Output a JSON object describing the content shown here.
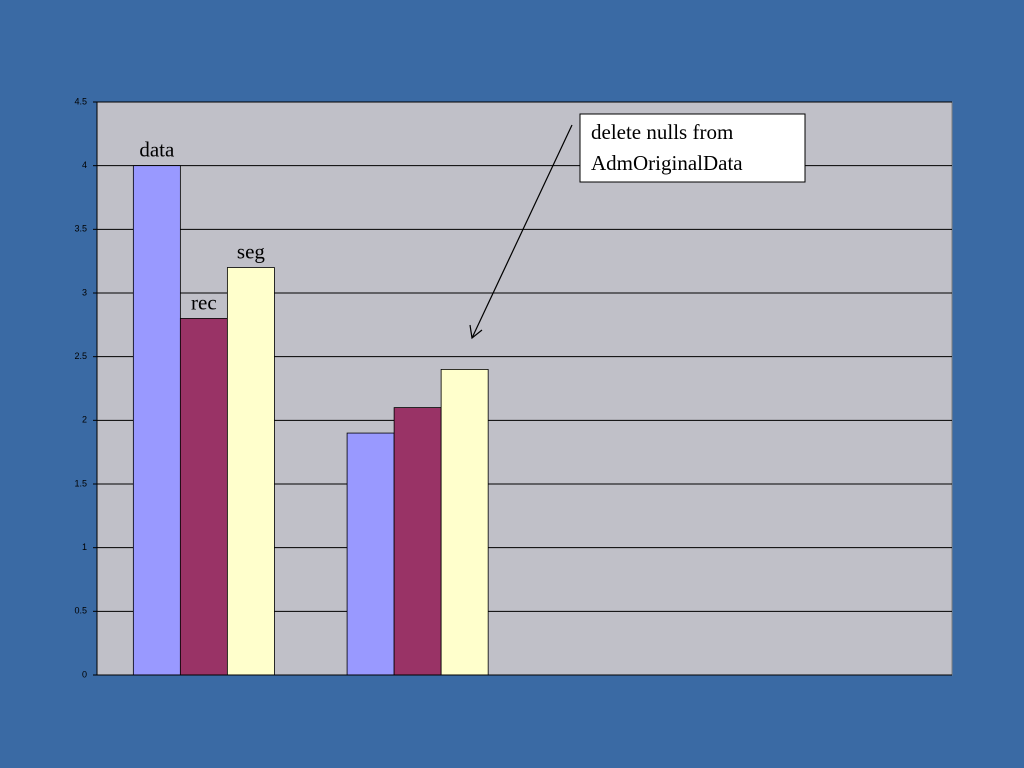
{
  "chart_data": {
    "type": "bar",
    "categories": [
      null,
      null,
      null,
      null
    ],
    "series": [
      {
        "name": "data",
        "color": "#9999ff",
        "values": [
          4,
          1.9,
          null,
          null
        ]
      },
      {
        "name": "rec",
        "color": "#993366",
        "values": [
          2.8,
          2.1,
          null,
          null
        ]
      },
      {
        "name": "seg",
        "color": "#ffffcc",
        "values": [
          3.2,
          2.4,
          null,
          null
        ]
      }
    ],
    "ylim": [
      0,
      4.5
    ],
    "yticks": [
      0,
      0.5,
      1,
      1.5,
      2,
      2.5,
      3,
      3.5,
      4,
      4.5
    ],
    "grid": true,
    "annotation": [
      "delete nulls from",
      "AdmOriginalData"
    ]
  }
}
